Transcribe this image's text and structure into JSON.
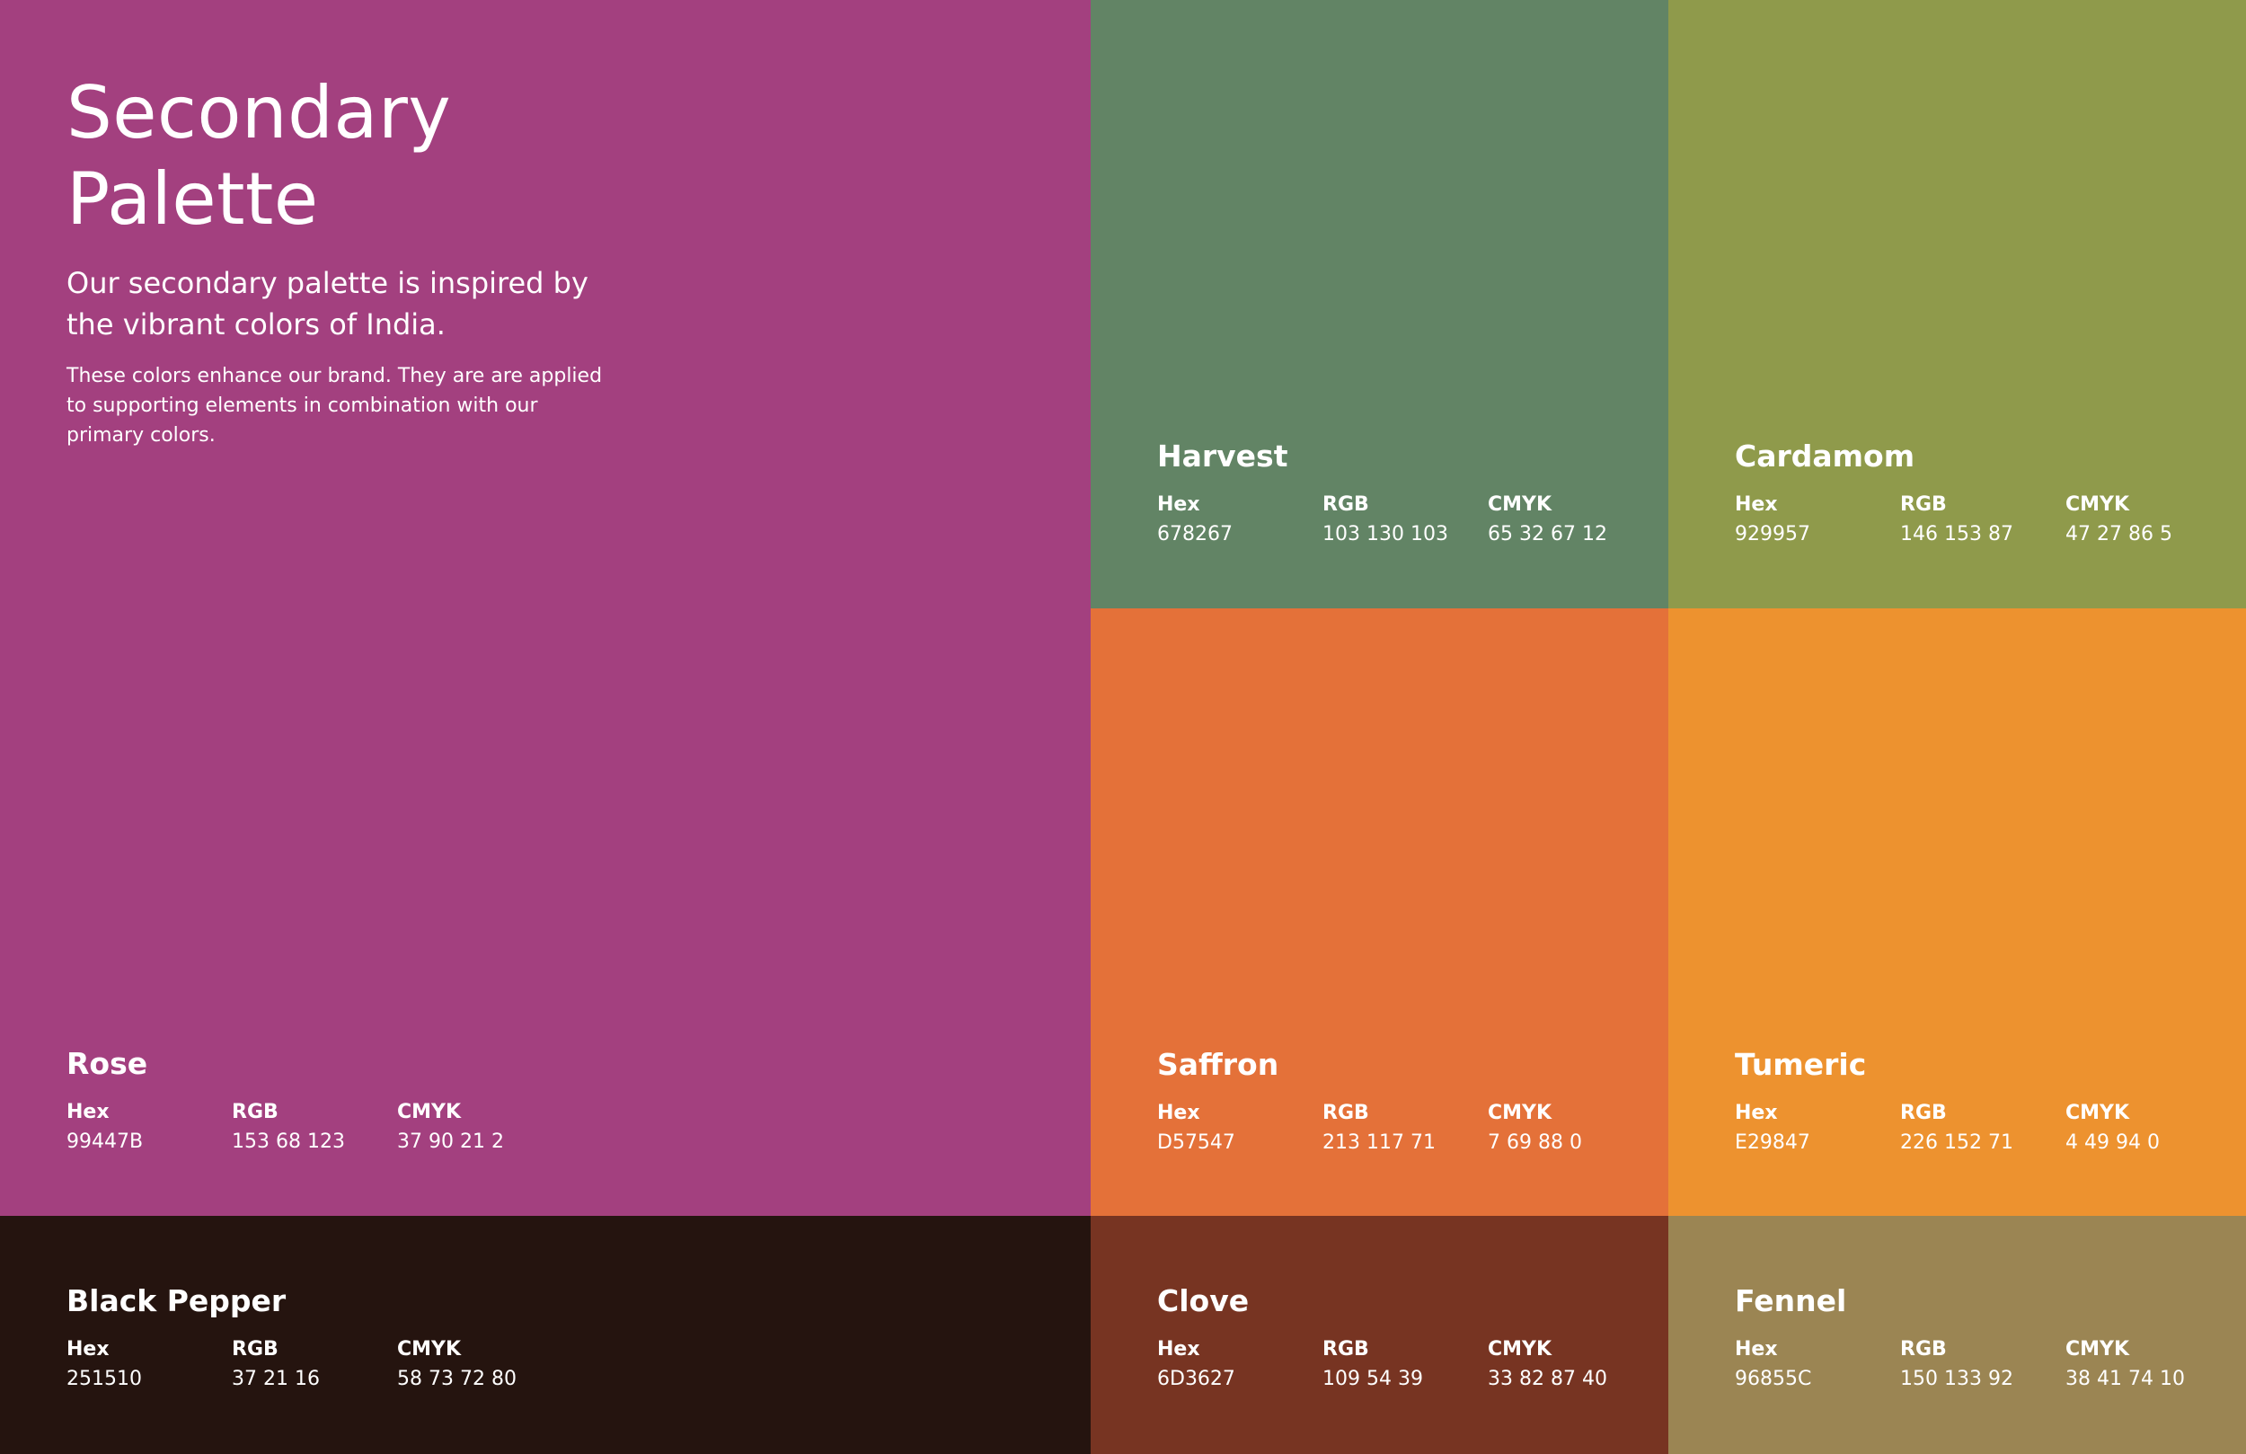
{
  "intro": {
    "title_line1": "Secondary",
    "title_line2": "Palette",
    "lead_line1": "Our secondary palette is inspired by",
    "lead_line2": "the vibrant colors of India.",
    "body_line1": "These colors enhance our brand. They are are applied",
    "body_line2": "to supporting elements in combination with our",
    "body_line3": "primary colors."
  },
  "labels": {
    "hex": "Hex",
    "rgb": "RGB",
    "cmyk": "CMYK"
  },
  "swatches": {
    "rose": {
      "name": "Rose",
      "hex": "99447B",
      "rgb": "153 68 123",
      "cmyk": "37 90 21 2",
      "color": "#a3407f"
    },
    "harvest": {
      "name": "Harvest",
      "hex": "678267",
      "rgb": "103 130 103",
      "cmyk": "65 32 67 12",
      "color": "#628465"
    },
    "cardamom": {
      "name": "Cardamom",
      "hex": "929957",
      "rgb": "146 153 87",
      "cmyk": "47 27 86 5",
      "color": "#8f9a4b"
    },
    "saffron": {
      "name": "Saffron",
      "hex": "D57547",
      "rgb": "213 117 71",
      "cmyk": "7 69 88 0",
      "color": "#e47139"
    },
    "tumeric": {
      "name": "Tumeric",
      "hex": "E29847",
      "rgb": "226 152 71",
      "cmyk": "4 49 94 0",
      "color": "#ed922f"
    },
    "pepper": {
      "name": "Black Pepper",
      "hex": "251510",
      "rgb": "37 21 16",
      "cmyk": "58 73 72 80",
      "color": "#25140f"
    },
    "clove": {
      "name": "Clove",
      "hex": "6D3627",
      "rgb": "109 54 39",
      "cmyk": "33 82 87 40",
      "color": "#773422"
    },
    "fennel": {
      "name": "Fennel",
      "hex": "96855C",
      "rgb": "150 133 92",
      "cmyk": "38 41 74 10",
      "color": "#9b8553"
    }
  }
}
